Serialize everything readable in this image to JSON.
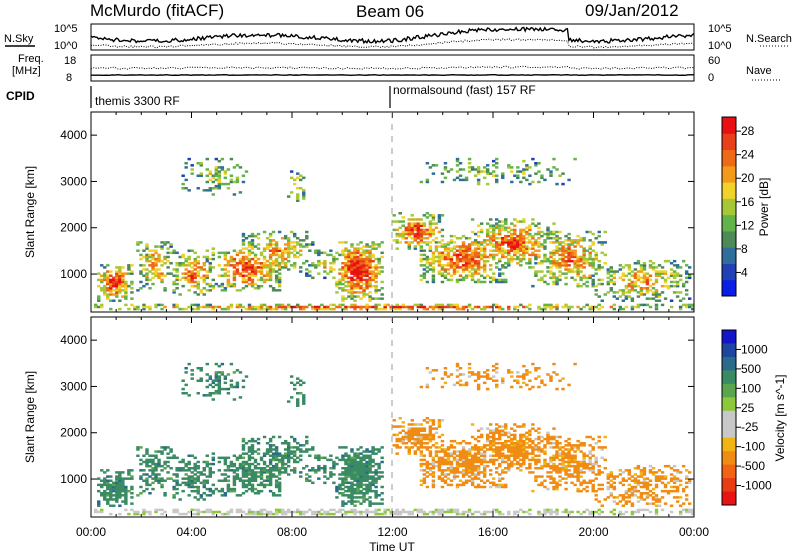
{
  "header": {
    "station": "McMurdo (fitACF)",
    "beam": "Beam 06",
    "date": "09/Jan/2012"
  },
  "noise_panel": {
    "left_label": "N.Sky",
    "right_label": "N.Search",
    "left_ticks": [
      "10^5",
      "10^0"
    ],
    "right_ticks": [
      "10^5",
      "10^0"
    ]
  },
  "freq_panel": {
    "left_label_1": "Freq.",
    "left_label_2": "[MHz]",
    "right_label": "Nave",
    "left_ticks": [
      "18",
      "8"
    ],
    "right_ticks": [
      "60",
      "0"
    ]
  },
  "cpid": {
    "label": "CPID",
    "segments": [
      {
        "name": "themis 3300 RF",
        "start_hour": 0
      },
      {
        "name": "normalsound (fast) 157 RF",
        "start_hour": 12
      }
    ]
  },
  "chart_data": [
    {
      "type": "heatmap",
      "name": "power",
      "ylabel": "Slant Range [km]",
      "ylim": [
        180,
        4500
      ],
      "yticks": [
        1000,
        2000,
        3000,
        4000
      ],
      "xlim": [
        0,
        24
      ],
      "colorbar_label": "Power [dB]",
      "colorbar_ticks": [
        "4",
        "8",
        "12",
        "16",
        "20",
        "24",
        "28"
      ],
      "colorbar_colors": [
        "#0a1ee6",
        "#2040b4",
        "#2f6e9c",
        "#4d8a58",
        "#62b44a",
        "#a6c838",
        "#f0d22a",
        "#f49a1a",
        "#ee6a16",
        "#e8401a",
        "#e81010"
      ]
    },
    {
      "type": "heatmap",
      "name": "velocity",
      "ylabel": "Slant Range [km]",
      "ylim": [
        180,
        4500
      ],
      "yticks": [
        1000,
        2000,
        3000,
        4000
      ],
      "xlim": [
        0,
        24
      ],
      "xlabel": "Time UT",
      "xtick_labels": [
        "00:00",
        "04:00",
        "08:00",
        "12:00",
        "16:00",
        "20:00",
        "00:00"
      ],
      "colorbar_label": "Velocity [m s^-1]",
      "colorbar_ticks": [
        "1000",
        "500",
        "100",
        "25",
        "-25",
        "-100",
        "-500",
        "-1000"
      ],
      "colorbar_colors": [
        "#1414c8",
        "#1e46a0",
        "#2c6a8c",
        "#3a8a64",
        "#5aa64e",
        "#8cc83c",
        "#c8c8c8",
        "#c8c8c8",
        "#f0b414",
        "#f08c14",
        "#f06414",
        "#e83c14",
        "#e81414"
      ]
    }
  ]
}
